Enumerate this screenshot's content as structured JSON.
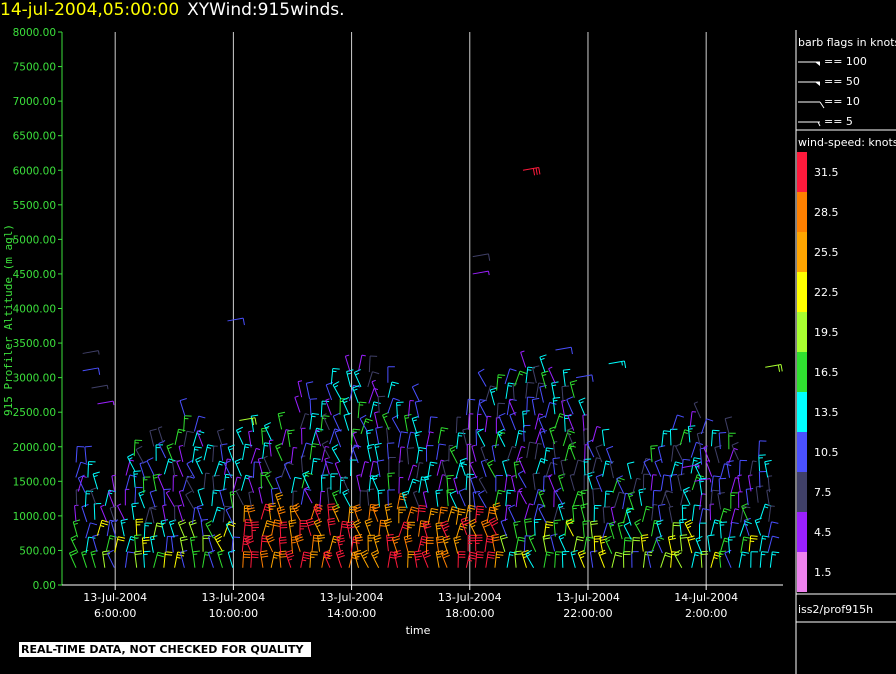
{
  "title": {
    "date": "14-jul-2004,05:00:00",
    "name": "XYWind:915winds."
  },
  "notice": "REAL-TIME DATA, NOT CHECKED FOR QUALITY",
  "legend": {
    "barb_title": "barb flags in knots",
    "barbs": [
      {
        "label": "== 100",
        "type": "flag"
      },
      {
        "label": "== 50",
        "type": "flag"
      },
      {
        "label": "== 10",
        "type": "full"
      },
      {
        "label": "== 5",
        "type": "half"
      }
    ],
    "speed_title": "wind-speed: knots",
    "speed_bins": [
      {
        "label": "31.5",
        "color": "#ff1a3c"
      },
      {
        "label": "28.5",
        "color": "#ff8000"
      },
      {
        "label": "25.5",
        "color": "#ffa500"
      },
      {
        "label": "22.5",
        "color": "#ffff00"
      },
      {
        "label": "19.5",
        "color": "#a8ff30"
      },
      {
        "label": "16.5",
        "color": "#30e030"
      },
      {
        "label": "13.5",
        "color": "#00ffff"
      },
      {
        "label": "10.5",
        "color": "#4a50ff"
      },
      {
        "label": "7.5",
        "color": "#404068"
      },
      {
        "label": "4.5",
        "color": "#9b20ff"
      },
      {
        "label": "1.5",
        "color": "#ee82ee"
      }
    ],
    "source": "iss2/prof915h"
  },
  "chart_data": {
    "type": "scatter",
    "subtype": "wind-barb time-height",
    "xlabel": "time",
    "ylabel": "915 Profiler Altitude (m agl)",
    "ylim": [
      0,
      8000
    ],
    "xlim_hours": [
      4.2,
      28.6
    ],
    "grid": "vertical lines at x ticks",
    "yticks": [
      "0.00",
      "500.00",
      "1000.00",
      "1500.00",
      "2000.00",
      "2500.00",
      "3000.00",
      "3500.00",
      "4000.00",
      "4500.00",
      "5000.00",
      "5500.00",
      "6000.00",
      "6500.00",
      "7000.00",
      "7500.00",
      "8000.00"
    ],
    "xticks": [
      {
        "hour": 6,
        "line1": "13-Jul-2004",
        "line2": "6:00:00"
      },
      {
        "hour": 10,
        "line1": "13-Jul-2004",
        "line2": "10:00:00"
      },
      {
        "hour": 14,
        "line1": "13-Jul-2004",
        "line2": "14:00:00"
      },
      {
        "hour": 18,
        "line1": "13-Jul-2004",
        "line2": "18:00:00"
      },
      {
        "hour": 22,
        "line1": "13-Jul-2004",
        "line2": "22:00:00"
      },
      {
        "hour": 26,
        "line1": "14-Jul-2004",
        "line2": "2:00:00"
      }
    ],
    "speed_units": "knots"
  }
}
